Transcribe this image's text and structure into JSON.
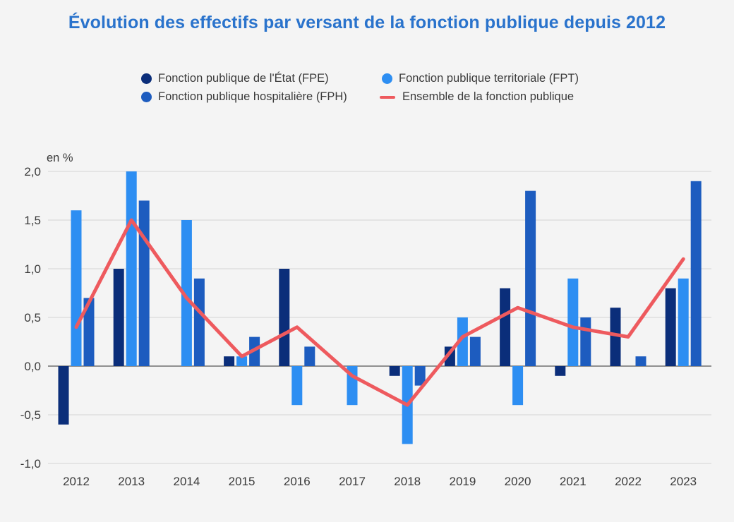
{
  "chart_data": {
    "type": "bar",
    "title": "Évolution des effectifs par versant de la fonction publique depuis 2012",
    "ylabel": "en %",
    "xlabel": "",
    "ylim": [
      -1.0,
      2.0
    ],
    "y_ticks": [
      "2,0",
      "1,5",
      "1,0",
      "0,5",
      "0,0",
      "-0,5",
      "-1,0"
    ],
    "y_tick_values": [
      2.0,
      1.5,
      1.0,
      0.5,
      0.0,
      -0.5,
      -1.0
    ],
    "categories": [
      "2012",
      "2013",
      "2014",
      "2015",
      "2016",
      "2017",
      "2018",
      "2019",
      "2020",
      "2021",
      "2022",
      "2023"
    ],
    "series": [
      {
        "name": "Fonction publique de l'État (FPE)",
        "kind": "bar",
        "color": "#0b2e7a",
        "values": [
          -0.6,
          1.0,
          0.0,
          0.1,
          1.0,
          0.0,
          -0.1,
          0.2,
          0.8,
          -0.1,
          0.6,
          0.8
        ]
      },
      {
        "name": "Fonction publique territoriale (FPT)",
        "kind": "bar",
        "color": "#2d8ef2",
        "values": [
          1.6,
          2.0,
          1.5,
          0.1,
          -0.4,
          -0.4,
          -0.8,
          0.5,
          -0.4,
          0.9,
          0.0,
          0.9
        ]
      },
      {
        "name": "Fonction publique hospitalière (FPH)",
        "kind": "bar",
        "color": "#1d5cbf",
        "values": [
          0.7,
          1.7,
          0.9,
          0.3,
          0.2,
          0.0,
          -0.2,
          0.3,
          1.8,
          0.5,
          0.1,
          1.9
        ]
      },
      {
        "name": "Ensemble de la fonction publique",
        "kind": "line",
        "color": "#ee5a5e",
        "values": [
          0.4,
          1.5,
          0.7,
          0.1,
          0.4,
          -0.1,
          -0.4,
          0.3,
          0.6,
          0.4,
          0.3,
          1.1
        ]
      }
    ],
    "legend_position": "top-center",
    "grid": true
  },
  "legend": {
    "fpe": "Fonction publique de l'État (FPE)",
    "fpt": "Fonction publique territoriale (FPT)",
    "fph": "Fonction publique hospitalière (FPH)",
    "ensemble": "Ensemble de la fonction publique"
  }
}
